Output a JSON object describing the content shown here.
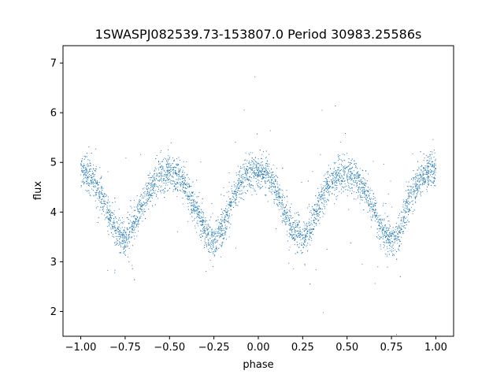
{
  "chart_data": {
    "type": "scatter",
    "title": "1SWASPJ082539.73-153807.0 Period 30983.25586s",
    "xlabel": "phase",
    "ylabel": "flux",
    "xlim": [
      -1.1,
      1.1
    ],
    "ylim": [
      1.5,
      7.35
    ],
    "xticks": [
      -1.0,
      -0.75,
      -0.5,
      -0.25,
      0.0,
      0.25,
      0.5,
      0.75,
      1.0
    ],
    "xtick_labels": [
      "−1.00",
      "−0.75",
      "−0.50",
      "−0.25",
      "0.00",
      "0.25",
      "0.50",
      "0.75",
      "1.00"
    ],
    "yticks": [
      2,
      3,
      4,
      5,
      6,
      7
    ],
    "ytick_labels": [
      "2",
      "3",
      "4",
      "5",
      "6",
      "7"
    ],
    "grid": false,
    "marker_color": "#1f77b4",
    "series": [
      {
        "name": "",
        "description_trend": "flux vs phase",
        "x": [
          -1.0,
          -0.95,
          -0.9,
          -0.85,
          -0.8,
          -0.75,
          -0.7,
          -0.65,
          -0.6,
          -0.55,
          -0.5,
          -0.45,
          -0.4,
          -0.35,
          -0.3,
          -0.25,
          -0.2,
          -0.15,
          -0.1,
          -0.05,
          0.0,
          0.05,
          0.1,
          0.15,
          0.2,
          0.25,
          0.3,
          0.35,
          0.4,
          0.45,
          0.5,
          0.55,
          0.6,
          0.65,
          0.7,
          0.75,
          0.8,
          0.85,
          0.9,
          0.95,
          1.0
        ],
        "y": [
          4.85,
          4.75,
          4.45,
          4.0,
          3.6,
          3.45,
          3.75,
          4.2,
          4.55,
          4.75,
          4.8,
          4.7,
          4.45,
          4.05,
          3.6,
          3.4,
          3.7,
          4.2,
          4.6,
          4.8,
          4.85,
          4.75,
          4.45,
          4.0,
          3.6,
          3.45,
          3.75,
          4.2,
          4.55,
          4.75,
          4.8,
          4.7,
          4.45,
          4.05,
          3.6,
          3.4,
          3.7,
          4.2,
          4.6,
          4.8,
          4.85
        ]
      }
    ]
  }
}
